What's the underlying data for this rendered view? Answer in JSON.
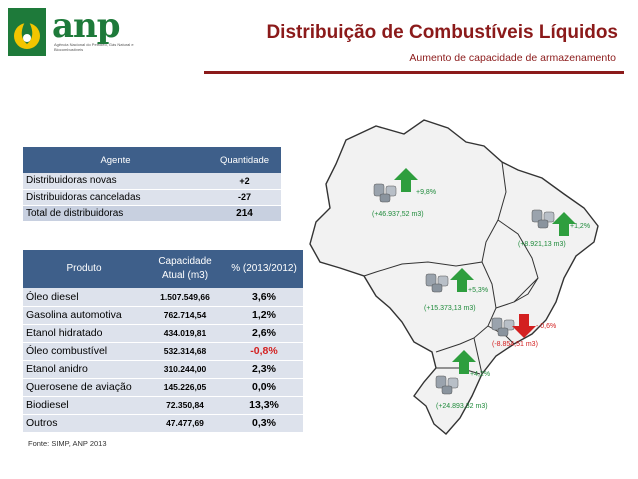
{
  "header": {
    "logo_text": "anp",
    "logo_subtext": "Agência Nacional do Petróleo, Gás Natural e Biocombustíveis",
    "title": "Distribuição de Combustíveis Líquidos",
    "subtitle": "Aumento de capacidade de armazenamento"
  },
  "agents_table": {
    "headers": [
      "Agente",
      "Quantidade"
    ],
    "rows": [
      {
        "label": "Distribuidoras novas",
        "value": "+2"
      },
      {
        "label": "Distribuidoras canceladas",
        "value": "-27"
      },
      {
        "label": "Total de distribuidoras",
        "value": "214"
      }
    ]
  },
  "products_table": {
    "headers": [
      "Produto",
      "Capacidade Atual (m3)",
      "% (2013/2012)"
    ],
    "rows": [
      {
        "product": "Óleo diesel",
        "capacity": "1.507.549,66",
        "pct": "3,6%"
      },
      {
        "product": "Gasolina automotiva",
        "capacity": "762.714,54",
        "pct": "1,2%"
      },
      {
        "product": "Etanol hidratado",
        "capacity": "434.019,81",
        "pct": "2,6%"
      },
      {
        "product": "Óleo combustível",
        "capacity": "532.314,68",
        "pct": "-0,8%"
      },
      {
        "product": "Etanol anidro",
        "capacity": "310.244,00",
        "pct": "2,3%"
      },
      {
        "product": "Querosene de aviação",
        "capacity": "145.226,05",
        "pct": "0,0%"
      },
      {
        "product": "Biodiesel",
        "capacity": "72.350,84",
        "pct": "13,3%"
      },
      {
        "product": "Outros",
        "capacity": "47.477,69",
        "pct": "0,3%"
      }
    ]
  },
  "source": "Fonte: SIMP, ANP 2013",
  "map": {
    "regions": [
      {
        "name": "norte",
        "pct": "+9,8%",
        "volume": "(+46.937,52 m3)",
        "trend": "up"
      },
      {
        "name": "nordeste",
        "pct": "+1,2%",
        "volume": "(+8.921,13 m3)",
        "trend": "up"
      },
      {
        "name": "centro-oeste",
        "pct": "+5,3%",
        "volume": "(+15.373,13 m3)",
        "trend": "up"
      },
      {
        "name": "sudeste",
        "pct": "- 0,6%",
        "volume": "(-8.854,51 m3)",
        "trend": "down"
      },
      {
        "name": "sul",
        "pct": "+4,2%",
        "volume": "(+24.893,32 m3)",
        "trend": "up"
      }
    ],
    "colors": {
      "land": "#f2f2f2",
      "border": "#333333",
      "up": "#2e9e3e",
      "down": "#d32020"
    }
  }
}
